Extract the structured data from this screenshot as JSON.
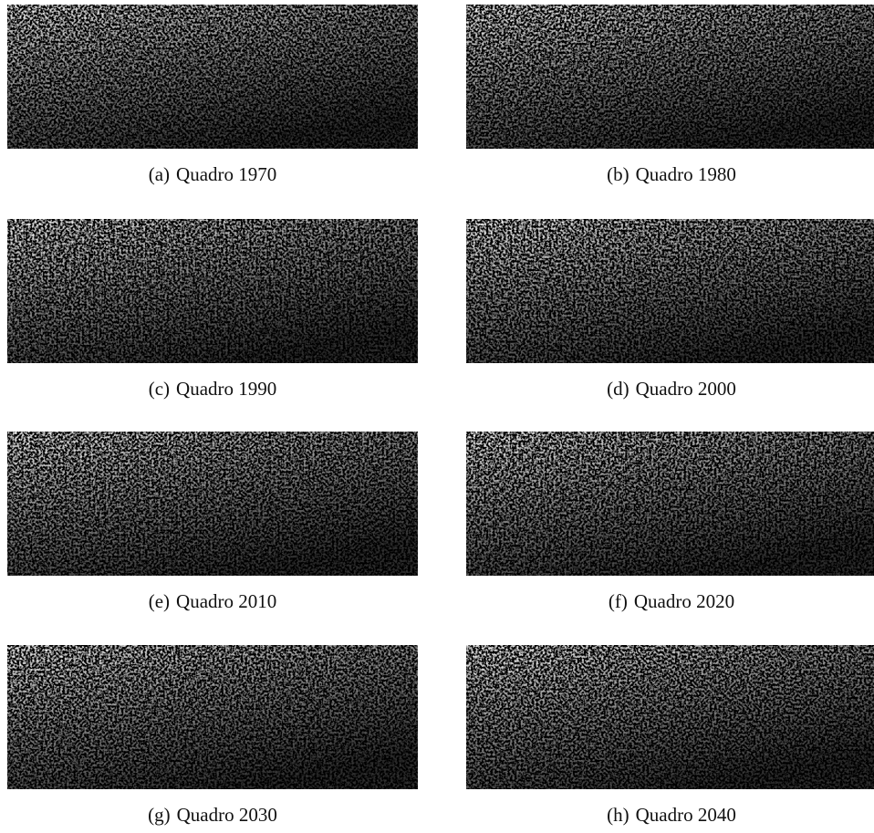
{
  "figures": [
    {
      "label": "(a)",
      "caption": "Quadro 1970"
    },
    {
      "label": "(b)",
      "caption": "Quadro 1980"
    },
    {
      "label": "(c)",
      "caption": "Quadro 1990"
    },
    {
      "label": "(d)",
      "caption": "Quadro 2000"
    },
    {
      "label": "(e)",
      "caption": "Quadro 2010"
    },
    {
      "label": "(f)",
      "caption": "Quadro 2020"
    },
    {
      "label": "(g)",
      "caption": "Quadro 2030"
    },
    {
      "label": "(h)",
      "caption": "Quadro 2040"
    }
  ]
}
